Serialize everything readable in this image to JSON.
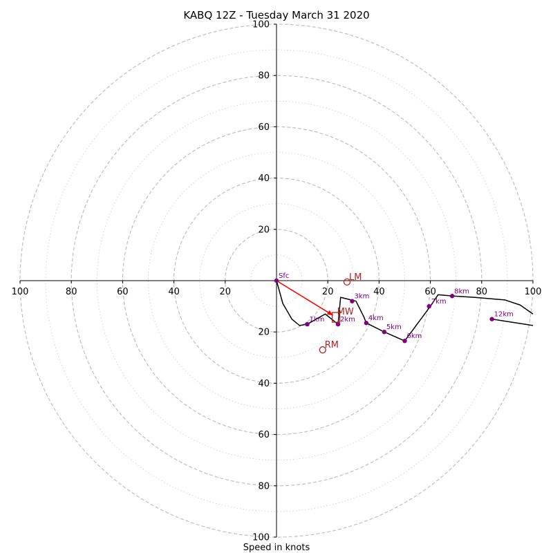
{
  "chart_data": {
    "type": "hodograph",
    "title": "KABQ 12Z - Tuesday March 31 2020",
    "xlabel": "Speed in knots",
    "range": [
      -100,
      100
    ],
    "ring_major": [
      20,
      40,
      60,
      80,
      100
    ],
    "ring_minor": [
      10,
      30,
      50,
      70,
      90
    ],
    "ticks_x": [
      "100",
      "80",
      "60",
      "40",
      "20",
      "",
      "20",
      "40",
      "60",
      "80",
      "100"
    ],
    "ticks_y": [
      "100",
      "80",
      "60",
      "40",
      "20",
      "",
      "20",
      "40",
      "60",
      "80",
      "100"
    ],
    "trace": [
      [
        0,
        0
      ],
      [
        2.5,
        -9
      ],
      [
        6,
        -15
      ],
      [
        9,
        -17.5
      ],
      [
        12,
        -17
      ],
      [
        19,
        -13
      ],
      [
        24,
        -17
      ],
      [
        25,
        -6.5
      ],
      [
        31,
        -8
      ],
      [
        34,
        -14
      ],
      [
        35,
        -16.5
      ],
      [
        42,
        -20
      ],
      [
        50,
        -23.5
      ],
      [
        60,
        -10
      ],
      [
        63,
        -5.5
      ],
      [
        69,
        -6
      ],
      [
        77,
        -6.5
      ],
      [
        89,
        -7.5
      ],
      [
        95,
        -9.5
      ],
      [
        100,
        -13
      ]
    ],
    "trace_tail": [
      [
        84,
        -15
      ],
      [
        100,
        -17.5
      ]
    ],
    "height_markers": [
      {
        "label": "Sfc",
        "u": 0,
        "v": 0
      },
      {
        "label": "1km",
        "u": 12,
        "v": -17
      },
      {
        "label": "2km",
        "u": 24,
        "v": -17
      },
      {
        "label": "3km",
        "u": 29.5,
        "v": -8
      },
      {
        "label": "4km",
        "u": 35,
        "v": -16.5
      },
      {
        "label": "5km",
        "u": 42,
        "v": -20
      },
      {
        "label": "6km",
        "u": 50,
        "v": -23.5
      },
      {
        "label": "7km",
        "u": 59.5,
        "v": -10
      },
      {
        "label": "8km",
        "u": 68.5,
        "v": -6
      },
      {
        "label": "12km",
        "u": 84,
        "v": -15
      }
    ],
    "storm_motion": {
      "LM": {
        "label": "LM",
        "u": 27.5,
        "v": -0.5
      },
      "RM": {
        "label": "RM",
        "u": 18,
        "v": -27
      },
      "MW": {
        "label": "MW",
        "u": 22,
        "v": -13.5
      }
    },
    "shear_vector": {
      "from": [
        0,
        0
      ],
      "to": [
        22,
        -13.5
      ]
    },
    "colors": {
      "trace": "#000000",
      "marker": "#800080",
      "storm": "#b22222",
      "shear": "#ff0000",
      "ring": "#bfbfbf"
    }
  }
}
